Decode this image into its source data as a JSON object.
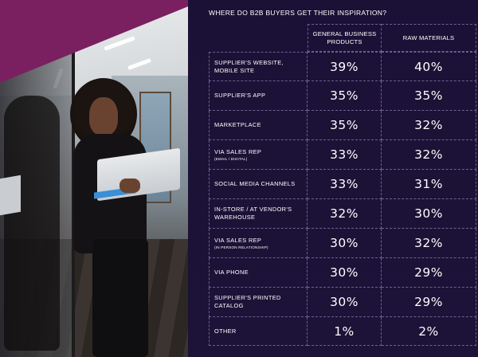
{
  "heading": "WHERE DO B2B BUYERS GET THEIR INSPIRATION?",
  "columns": [
    "GENERAL BUSINESS PRODUCTS",
    "RAW MATERIALS"
  ],
  "rows": [
    {
      "label": "SUPPLIER'S WEBSITE, MOBILE SITE",
      "sub": "",
      "general": "39%",
      "raw": "40%"
    },
    {
      "label": "SUPPLIER'S APP",
      "sub": "",
      "general": "35%",
      "raw": "35%"
    },
    {
      "label": "MARKETPLACE",
      "sub": "",
      "general": "35%",
      "raw": "32%"
    },
    {
      "label": "VIA SALES REP",
      "sub": "(EMAIL / DIGITAL)",
      "general": "33%",
      "raw": "32%"
    },
    {
      "label": "SOCIAL MEDIA CHANNELS",
      "sub": "",
      "general": "33%",
      "raw": "31%"
    },
    {
      "label": "IN-STORE / AT VENDOR'S WAREHOUSE",
      "sub": "",
      "general": "32%",
      "raw": "30%"
    },
    {
      "label": "VIA SALES REP",
      "sub": "(IN PERSON RELATIONSHIP)",
      "general": "30%",
      "raw": "32%"
    },
    {
      "label": "VIA PHONE",
      "sub": "",
      "general": "30%",
      "raw": "29%"
    },
    {
      "label": "SUPPLIER'S PRINTED CATALOG",
      "sub": "",
      "general": "30%",
      "raw": "29%"
    },
    {
      "label": "OTHER",
      "sub": "",
      "general": "1%",
      "raw": "2%"
    }
  ],
  "colors": {
    "panel_bg": "#1b1136",
    "grid_line": "#6c6092",
    "accent_band": "#7a2060",
    "text": "#ffffff"
  }
}
